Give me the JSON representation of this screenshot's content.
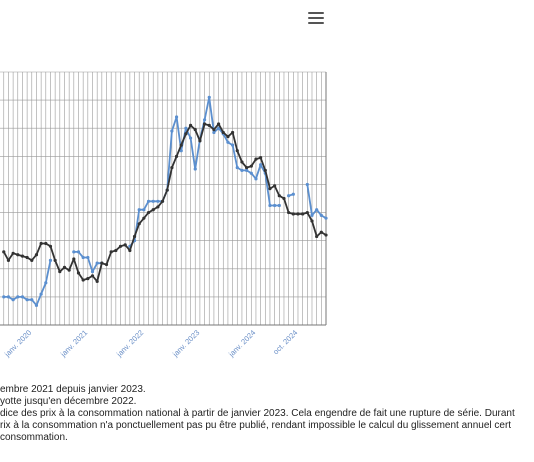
{
  "header": {
    "menu_icon": "hamburger-menu-icon"
  },
  "chart_data": {
    "type": "line",
    "title": "",
    "xlabel": "",
    "ylabel": "",
    "x_tick_labels": [
      "janv. 2020",
      "janv. 2021",
      "janv. 2022",
      "janv. 2023",
      "janv. 2024",
      "oct. 2024"
    ],
    "grid": true,
    "colors": {
      "series_dark": "#333333",
      "series_blue": "#5b8fcf",
      "grid": "#999999"
    },
    "series": [
      {
        "name": "",
        "color": "#333333",
        "values": [
          1.6,
          1.3,
          1.55,
          1.5,
          1.45,
          1.4,
          1.3,
          1.5,
          1.9,
          1.9,
          1.8,
          1.3,
          0.9,
          1.05,
          0.95,
          1.35,
          0.85,
          0.6,
          0.65,
          0.75,
          0.55,
          1.2,
          1.15,
          1.6,
          1.65,
          1.8,
          1.85,
          1.65,
          2.15,
          2.6,
          2.8,
          3.0,
          3.1,
          3.2,
          3.4,
          3.8,
          4.6,
          5.0,
          5.4,
          5.8,
          6.1,
          5.95,
          5.55,
          6.15,
          6.1,
          5.95,
          6.15,
          5.85,
          5.7,
          5.85,
          5.2,
          4.8,
          4.6,
          4.65,
          4.9,
          4.95,
          4.5,
          3.85,
          3.95,
          3.6,
          3.5,
          3.0,
          2.95,
          2.95,
          2.95,
          3.0,
          2.7,
          2.15,
          2.3,
          2.2
        ]
      },
      {
        "name": "",
        "color": "#5b8fcf",
        "values": [
          0.0,
          0.0,
          -0.1,
          0.0,
          0.0,
          -0.1,
          -0.1,
          -0.3,
          0.1,
          0.5,
          1.3,
          null,
          null,
          null,
          null,
          1.6,
          1.6,
          1.4,
          1.4,
          0.9,
          1.2,
          1.2,
          null,
          null,
          null,
          null,
          null,
          1.8,
          2.0,
          3.1,
          3.1,
          3.4,
          3.4,
          3.4,
          3.4,
          3.8,
          5.9,
          6.4,
          5.2,
          6.0,
          5.65,
          4.55,
          5.6,
          6.3,
          7.1,
          5.85,
          6.0,
          5.8,
          5.5,
          5.4,
          4.6,
          4.5,
          4.5,
          4.4,
          4.2,
          4.7,
          4.4,
          3.25,
          3.25,
          3.25,
          null,
          3.6,
          3.65,
          null,
          null,
          4.0,
          2.9,
          3.1,
          2.9,
          2.8
        ]
      }
    ],
    "ylim": [
      -1.0,
      8.0
    ],
    "points": 70
  },
  "notes": {
    "line1": "embre 2021 depuis janvier 2023.",
    "line2": "yotte jusqu'en décembre 2022.",
    "line3": "dice des prix à la consommation national à partir de janvier 2023. Cela engendre de fait une rupture de série. Durant",
    "line4": "rix à la consommation n'a ponctuellement pas pu être publié, rendant impossible le calcul du glissement annuel cert",
    "line5": "consommation."
  }
}
